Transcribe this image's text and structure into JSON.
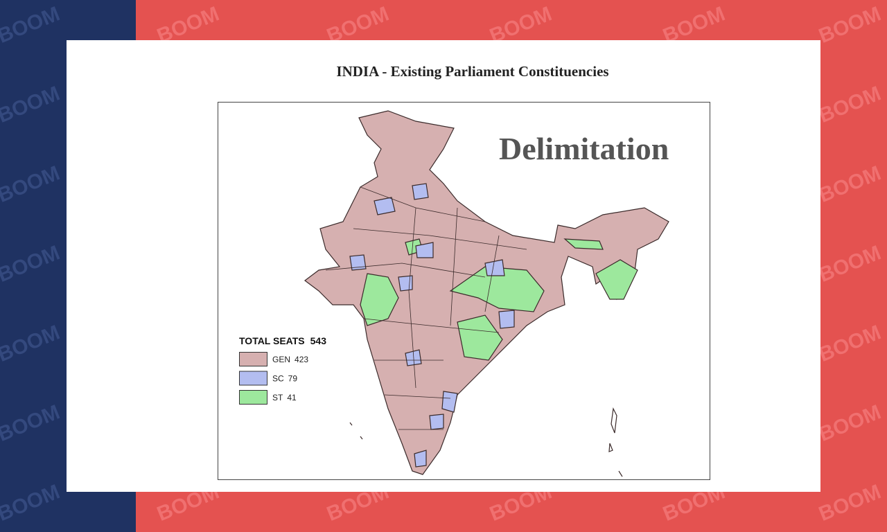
{
  "watermark": "BOOM",
  "title": "INDIA - Existing Parliament Constituencies",
  "overlay_title": "Delimitation",
  "legend": {
    "title": "TOTAL SEATS",
    "total": 543,
    "items": [
      {
        "label": "GEN",
        "seats": 423,
        "color": "#d6b0b0"
      },
      {
        "label": "SC",
        "seats": 79,
        "color": "#b3bdf0"
      },
      {
        "label": "ST",
        "seats": 41,
        "color": "#9de89d"
      }
    ]
  }
}
